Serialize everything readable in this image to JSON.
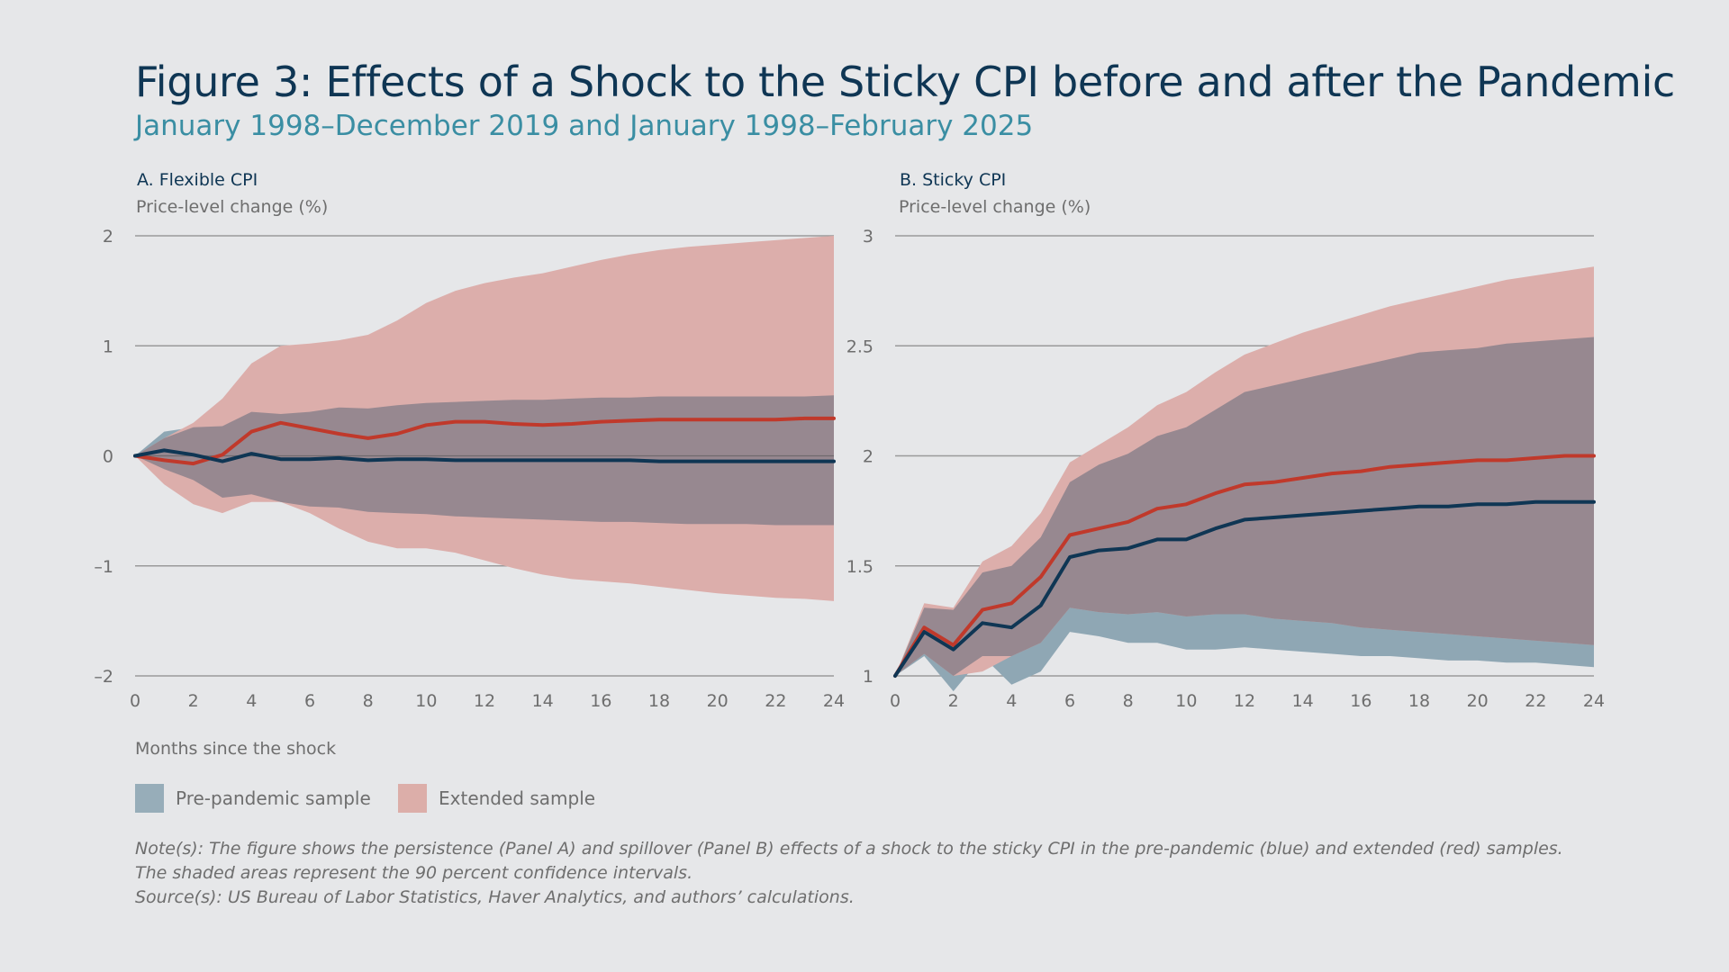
{
  "title": "Figure 3: Effects of a Shock to the Sticky CPI before and after the Pandemic",
  "subtitle": "January 1998–December 2019 and January 1998–February 2025",
  "xlabel": "Months since the shock",
  "legend": {
    "pre": {
      "label": "Pre-pandemic sample",
      "color": "#97adb9"
    },
    "ext": {
      "label": "Extended sample",
      "color": "#dcaea9"
    }
  },
  "note": "Note(s): The figure shows the persistence (Panel A) and spillover (Panel B) effects of a shock to the sticky CPI in the pre-pandemic (blue) and extended (red) samples. The shaded areas represent the 90 percent confidence intervals.",
  "source": "Source(s): US Bureau of Labor Statistics, Haver Analytics, and authors’ calculations.",
  "colors": {
    "pre_line": "#0f3654",
    "ext_line": "#c0392b",
    "pre_band": "#8fa7b4",
    "ext_band": "#dcaeab",
    "overlap_band": "#978890",
    "grid": "#9a9a9a",
    "tick_text": "#6e6e6e"
  },
  "chart_data": [
    {
      "type": "line",
      "panel_title": "A. Flexible CPI",
      "ylabel": "Price-level change (%)",
      "ylim": [
        -2,
        2
      ],
      "yticks": [
        2,
        1,
        0,
        -1,
        -2
      ],
      "ytick_labels": [
        "2",
        "1",
        "0",
        "–1",
        "–2"
      ],
      "xlim": [
        0,
        24
      ],
      "xticks": [
        0,
        2,
        4,
        6,
        8,
        10,
        12,
        14,
        16,
        18,
        20,
        22,
        24
      ],
      "x": [
        0,
        1,
        2,
        3,
        4,
        5,
        6,
        7,
        8,
        9,
        10,
        11,
        12,
        13,
        14,
        15,
        16,
        17,
        18,
        19,
        20,
        21,
        22,
        23,
        24
      ],
      "grid": true,
      "series": [
        {
          "label": "Pre-pandemic sample",
          "values": [
            0,
            0.05,
            0.01,
            -0.05,
            0.02,
            -0.03,
            -0.03,
            -0.02,
            -0.04,
            -0.03,
            -0.03,
            -0.04,
            -0.04,
            -0.04,
            -0.04,
            -0.04,
            -0.04,
            -0.04,
            -0.05,
            -0.05,
            -0.05,
            -0.05,
            -0.05,
            -0.05,
            -0.05
          ],
          "lower": [
            0,
            -0.12,
            -0.22,
            -0.38,
            -0.35,
            -0.42,
            -0.46,
            -0.47,
            -0.51,
            -0.52,
            -0.53,
            -0.55,
            -0.56,
            -0.57,
            -0.58,
            -0.59,
            -0.6,
            -0.6,
            -0.61,
            -0.62,
            -0.62,
            -0.62,
            -0.63,
            -0.63,
            -0.63
          ],
          "upper": [
            0,
            0.22,
            0.26,
            0.27,
            0.4,
            0.38,
            0.4,
            0.44,
            0.43,
            0.46,
            0.48,
            0.49,
            0.5,
            0.51,
            0.51,
            0.52,
            0.53,
            0.53,
            0.54,
            0.54,
            0.54,
            0.54,
            0.54,
            0.54,
            0.55
          ]
        },
        {
          "label": "Extended sample",
          "values": [
            0,
            -0.04,
            -0.07,
            0.01,
            0.22,
            0.3,
            0.25,
            0.2,
            0.16,
            0.2,
            0.28,
            0.31,
            0.31,
            0.29,
            0.28,
            0.29,
            0.31,
            0.32,
            0.33,
            0.33,
            0.33,
            0.33,
            0.33,
            0.34,
            0.34
          ],
          "lower": [
            0,
            -0.26,
            -0.44,
            -0.52,
            -0.42,
            -0.42,
            -0.52,
            -0.66,
            -0.78,
            -0.84,
            -0.84,
            -0.88,
            -0.95,
            -1.02,
            -1.08,
            -1.12,
            -1.14,
            -1.16,
            -1.19,
            -1.22,
            -1.25,
            -1.27,
            -1.29,
            -1.3,
            -1.32
          ],
          "upper": [
            0,
            0.16,
            0.3,
            0.52,
            0.84,
            1.0,
            1.02,
            1.05,
            1.1,
            1.23,
            1.39,
            1.5,
            1.57,
            1.62,
            1.66,
            1.72,
            1.78,
            1.83,
            1.87,
            1.9,
            1.92,
            1.94,
            1.96,
            1.98,
            2.0
          ]
        }
      ]
    },
    {
      "type": "line",
      "panel_title": "B. Sticky CPI",
      "ylabel": "Price-level change (%)",
      "ylim": [
        1,
        3
      ],
      "yticks": [
        3,
        2.5,
        2,
        1.5,
        1
      ],
      "ytick_labels": [
        "3",
        "2.5",
        "2",
        "1.5",
        "1"
      ],
      "xlim": [
        0,
        24
      ],
      "xticks": [
        0,
        2,
        4,
        6,
        8,
        10,
        12,
        14,
        16,
        18,
        20,
        22,
        24
      ],
      "x": [
        0,
        1,
        2,
        3,
        4,
        5,
        6,
        7,
        8,
        9,
        10,
        11,
        12,
        13,
        14,
        15,
        16,
        17,
        18,
        19,
        20,
        21,
        22,
        23,
        24
      ],
      "grid": true,
      "series": [
        {
          "label": "Pre-pandemic sample",
          "values": [
            1,
            1.2,
            1.12,
            1.24,
            1.22,
            1.32,
            1.54,
            1.57,
            1.58,
            1.62,
            1.62,
            1.67,
            1.71,
            1.72,
            1.73,
            1.74,
            1.75,
            1.76,
            1.77,
            1.77,
            1.78,
            1.78,
            1.79,
            1.79,
            1.79
          ],
          "lower": [
            1,
            1.09,
            0.93,
            1.09,
            0.96,
            1.02,
            1.2,
            1.18,
            1.15,
            1.15,
            1.12,
            1.12,
            1.13,
            1.12,
            1.11,
            1.1,
            1.09,
            1.09,
            1.08,
            1.07,
            1.07,
            1.06,
            1.06,
            1.05,
            1.04
          ],
          "upper": [
            1,
            1.31,
            1.3,
            1.47,
            1.5,
            1.63,
            1.88,
            1.96,
            2.01,
            2.09,
            2.13,
            2.21,
            2.29,
            2.32,
            2.35,
            2.38,
            2.41,
            2.44,
            2.47,
            2.48,
            2.49,
            2.51,
            2.52,
            2.53,
            2.54
          ]
        },
        {
          "label": "Extended sample",
          "values": [
            1,
            1.22,
            1.14,
            1.3,
            1.33,
            1.45,
            1.64,
            1.67,
            1.7,
            1.76,
            1.78,
            1.83,
            1.87,
            1.88,
            1.9,
            1.92,
            1.93,
            1.95,
            1.96,
            1.97,
            1.98,
            1.98,
            1.99,
            2.0,
            2.0
          ],
          "lower": [
            1,
            1.1,
            1.0,
            1.02,
            1.09,
            1.15,
            1.31,
            1.29,
            1.28,
            1.29,
            1.27,
            1.28,
            1.28,
            1.26,
            1.25,
            1.24,
            1.22,
            1.21,
            1.2,
            1.19,
            1.18,
            1.17,
            1.16,
            1.15,
            1.14
          ],
          "upper": [
            1,
            1.33,
            1.31,
            1.52,
            1.59,
            1.74,
            1.97,
            2.05,
            2.13,
            2.23,
            2.29,
            2.38,
            2.46,
            2.51,
            2.56,
            2.6,
            2.64,
            2.68,
            2.71,
            2.74,
            2.77,
            2.8,
            2.82,
            2.84,
            2.86
          ]
        }
      ]
    }
  ]
}
